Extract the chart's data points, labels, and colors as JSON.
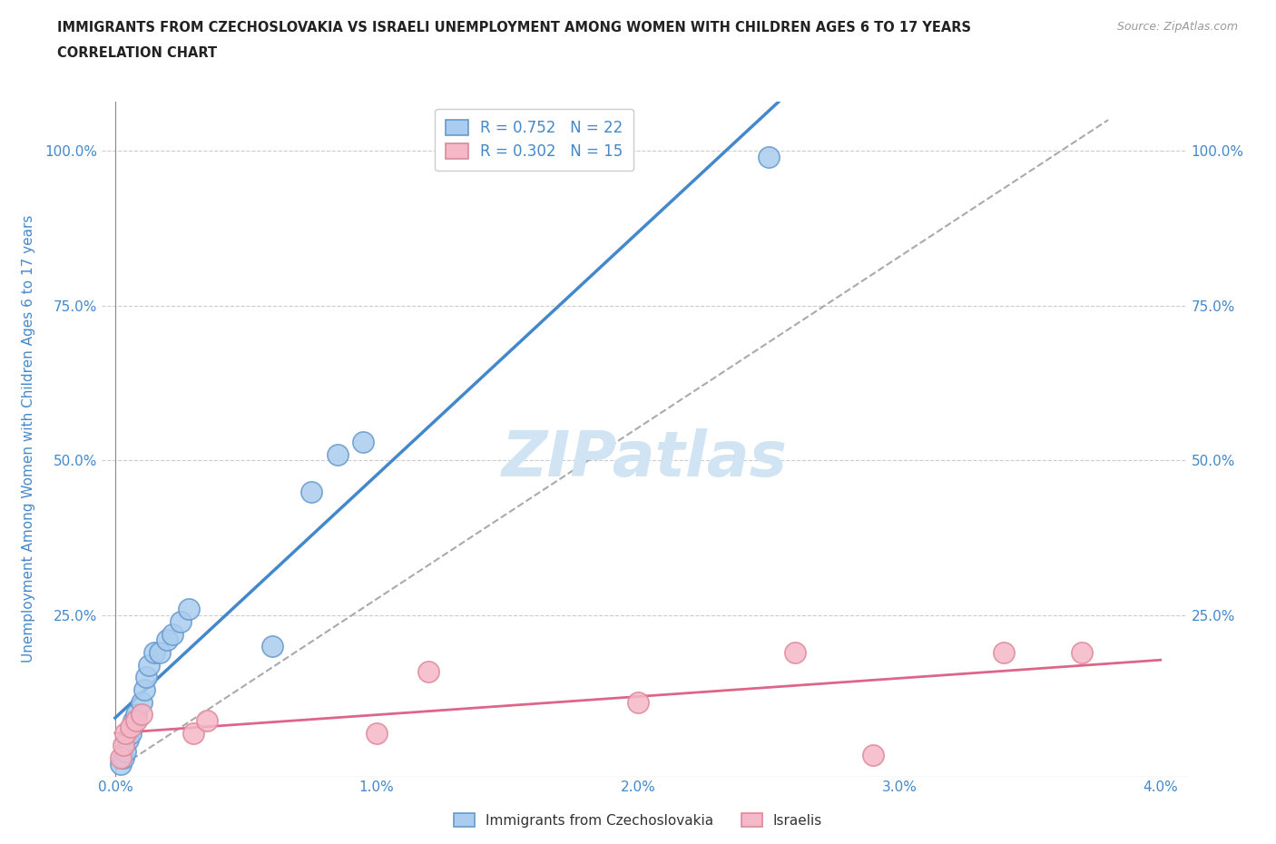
{
  "title_line1": "IMMIGRANTS FROM CZECHOSLOVAKIA VS ISRAELI UNEMPLOYMENT AMONG WOMEN WITH CHILDREN AGES 6 TO 17 YEARS",
  "title_line2": "CORRELATION CHART",
  "source": "Source: ZipAtlas.com",
  "ylabel": "Unemployment Among Women with Children Ages 6 to 17 years",
  "xlim": [
    -0.0005,
    0.041
  ],
  "ylim": [
    -0.01,
    1.08
  ],
  "xticks": [
    0.0,
    0.01,
    0.02,
    0.03,
    0.04
  ],
  "yticks_left": [
    0.0,
    0.25,
    0.5,
    0.75,
    1.0
  ],
  "ytick_labels_left": [
    "",
    "25.0%",
    "50.0%",
    "75.0%",
    "100.0%"
  ],
  "ytick_labels_right": [
    "",
    "25.0%",
    "50.0%",
    "75.0%",
    "100.0%"
  ],
  "xtick_labels": [
    "0.0%",
    "1.0%",
    "2.0%",
    "3.0%",
    "4.0%"
  ],
  "legend_series": [
    {
      "label": "Immigrants from Czechoslovakia",
      "color": "#aaccee",
      "edge": "#6699cc",
      "R": 0.752,
      "N": 22
    },
    {
      "label": "Israelis",
      "color": "#f5b8c8",
      "edge": "#dd8899",
      "R": 0.302,
      "N": 15
    }
  ],
  "blue_scatter_x": [
    0.0002,
    0.0003,
    0.0004,
    0.0005,
    0.0006,
    0.0007,
    0.0008,
    0.001,
    0.0011,
    0.0012,
    0.0013,
    0.0015,
    0.0017,
    0.002,
    0.0022,
    0.0025,
    0.0028,
    0.006,
    0.0075,
    0.0085,
    0.0095,
    0.025
  ],
  "blue_scatter_y": [
    0.01,
    0.02,
    0.03,
    0.05,
    0.06,
    0.08,
    0.09,
    0.11,
    0.13,
    0.15,
    0.17,
    0.19,
    0.19,
    0.21,
    0.22,
    0.24,
    0.26,
    0.2,
    0.45,
    0.51,
    0.53,
    0.99
  ],
  "pink_scatter_x": [
    0.0002,
    0.0003,
    0.0004,
    0.0006,
    0.0008,
    0.001,
    0.003,
    0.0035,
    0.01,
    0.012,
    0.02,
    0.026,
    0.029,
    0.034,
    0.037
  ],
  "pink_scatter_y": [
    0.02,
    0.04,
    0.06,
    0.07,
    0.08,
    0.09,
    0.06,
    0.08,
    0.06,
    0.16,
    0.11,
    0.19,
    0.025,
    0.19,
    0.19
  ],
  "blue_line_color": "#4488cc",
  "pink_line_color": "#dd6688",
  "ref_line_color": "#aaaaaa",
  "watermark": "ZIPatlas",
  "watermark_color": "#d0e4f4",
  "background_color": "#ffffff",
  "title_color": "#222222",
  "axis_color": "#4488cc",
  "axis_tick_color": "#4488cc"
}
